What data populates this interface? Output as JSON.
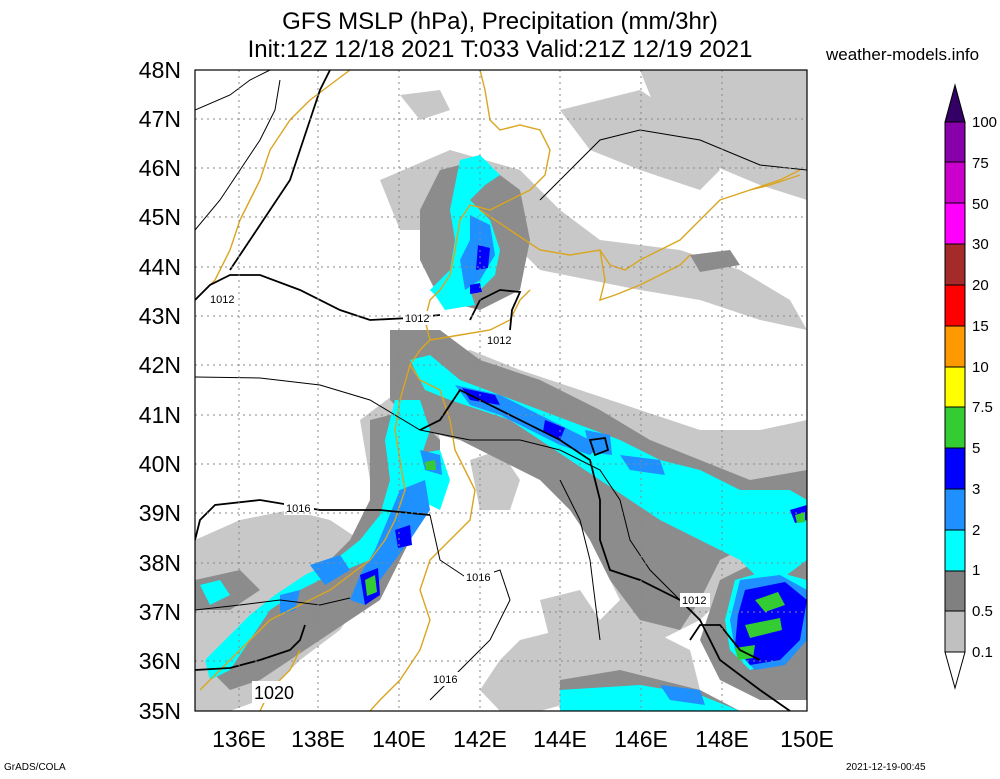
{
  "header": {
    "title_line1": "GFS MSLP (hPa), Precipitation (mm/3hr)",
    "title_line2": "Init:12Z 12/18 2021 T:033 Valid:21Z 12/19 2021",
    "site": "weather-models.info"
  },
  "footer": {
    "left": "GrADS/COLA",
    "right": "2021-12-19-00:45"
  },
  "map": {
    "lat_labels": [
      "48N",
      "47N",
      "46N",
      "45N",
      "44N",
      "43N",
      "42N",
      "41N",
      "40N",
      "39N",
      "38N",
      "37N",
      "36N",
      "35N"
    ],
    "lon_labels": [
      "136E",
      "138E",
      "140E",
      "142E",
      "144E",
      "146E",
      "148E",
      "150E"
    ],
    "isobar_labels": [
      "1012",
      "1012",
      "1012",
      "1016",
      "1016",
      "1016",
      "1012",
      "1020"
    ]
  },
  "legend": {
    "labels": [
      "100",
      "75",
      "50",
      "30",
      "20",
      "15",
      "10",
      "7.5",
      "5",
      "3",
      "2",
      "1",
      "0.5",
      "0.1"
    ],
    "colors": [
      "#330066",
      "#8800aa",
      "#cc00cc",
      "#ff00ff",
      "#a52a2a",
      "#ff0000",
      "#ff9900",
      "#ffff00",
      "#33cc33",
      "#0000ff",
      "#1e90ff",
      "#00ffff",
      "#808080",
      "#c0c0c0",
      "#ffffff"
    ]
  },
  "colors": {
    "coast": "#daa520",
    "light_precip": "#c0c0c0",
    "mid_precip": "#808080",
    "cyan": "#00ffff",
    "blue": "#1e90ff",
    "dark_blue": "#0000ff",
    "green": "#33cc33"
  }
}
